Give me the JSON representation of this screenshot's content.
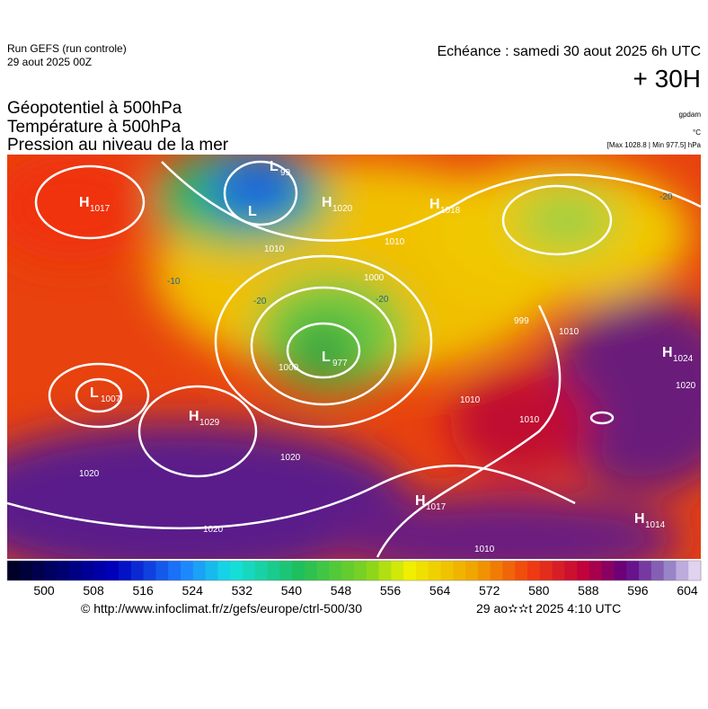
{
  "header": {
    "run": "Run GEFS (run controle)",
    "run_date": "29 aout 2025 00Z",
    "valid": "Echéance : samedi 30 aout 2025 6h UTC",
    "lead": "+ 30H"
  },
  "fields": [
    "Géopotentiel à 500hPa",
    "Température à 500hPa",
    "Pression au niveau de la mer"
  ],
  "units": {
    "geopotential": "gpdam",
    "temperature": "°C",
    "pressure": "[Max 1028.8 | Min 977.5] hPa"
  },
  "pressure_centers": [
    {
      "kind": "H",
      "value": 1017
    },
    {
      "kind": "L",
      "value": 99
    },
    {
      "kind": "L"
    },
    {
      "kind": "H",
      "value": 1020
    },
    {
      "kind": "H",
      "value": 1018
    },
    {
      "kind": "L",
      "value": 977
    },
    {
      "kind": "L",
      "value": 1007
    },
    {
      "kind": "H",
      "value": 1029
    },
    {
      "kind": "H",
      "value": 1024
    },
    {
      "kind": "H",
      "value": 1017
    },
    {
      "kind": "H",
      "value": 1014
    }
  ],
  "isobar_labels": [
    1010,
    1010,
    1000,
    1000,
    999,
    1010,
    1010,
    1010,
    1020,
    1020,
    1020,
    1020,
    1010
  ],
  "temperature_labels": [
    -20,
    -20,
    -20,
    -10
  ],
  "colorbar": {
    "ticks": [
      500,
      508,
      516,
      524,
      532,
      540,
      548,
      556,
      564,
      572,
      580,
      588,
      596,
      604
    ]
  },
  "footer": {
    "source": "© http://www.infoclimat.fr/z/gefs/europe/ctrl-500/30",
    "timestamp": "29 ao✫✫t 2025  4:10 UTC"
  }
}
